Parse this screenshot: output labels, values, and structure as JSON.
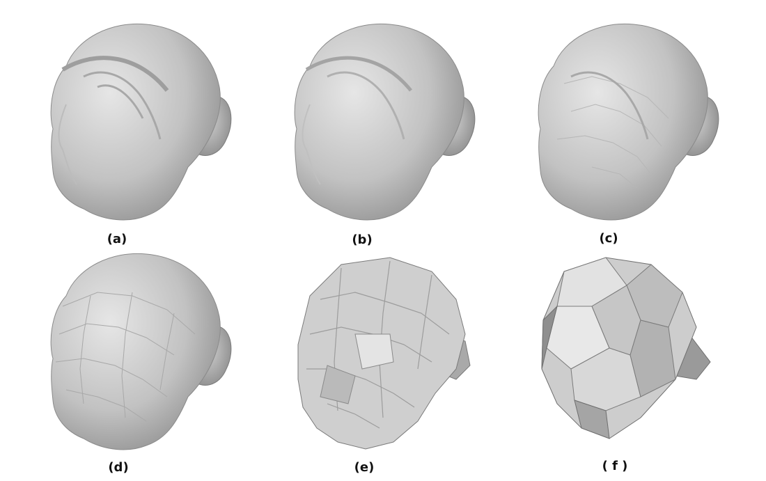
{
  "panels": [
    {
      "id": "a",
      "caption": "(a)",
      "icon": "detailed-head-mesh"
    },
    {
      "id": "b",
      "caption": "(b)",
      "icon": "smoothed-head-mesh"
    },
    {
      "id": "c",
      "caption": "(c)",
      "icon": "medium-faceted-head-mesh"
    },
    {
      "id": "d",
      "caption": "(d)",
      "icon": "coarse-head-mesh"
    },
    {
      "id": "e",
      "caption": "(e)",
      "icon": "very-coarse-head-mesh"
    },
    {
      "id": "f",
      "caption": "( f )",
      "icon": "coarsest-head-mesh"
    }
  ],
  "colors": {
    "mesh_light": "#dcdcdc",
    "mesh_mid": "#bdbdbd",
    "mesh_dark": "#8a8a8a",
    "caption": "#111111",
    "background": "#ffffff"
  }
}
